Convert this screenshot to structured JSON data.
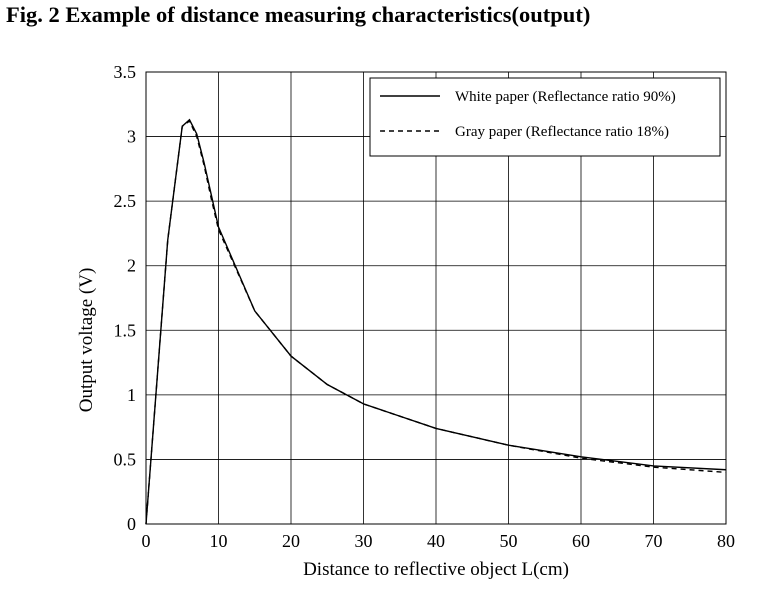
{
  "title": "Fig. 2 Example of distance measuring characteristics(output)",
  "chart_data": {
    "type": "line",
    "xlabel": "Distance to reflective object L(cm)",
    "ylabel": "Output voltage (V)",
    "xlim": [
      0,
      80
    ],
    "ylim": [
      0,
      3.5
    ],
    "xticks": [
      0,
      10,
      20,
      30,
      40,
      50,
      60,
      70,
      80
    ],
    "yticks": [
      0,
      0.5,
      1,
      1.5,
      2,
      2.5,
      3,
      3.5
    ],
    "xtick_labels": [
      "0",
      "10",
      "20",
      "30",
      "40",
      "50",
      "60",
      "70",
      "80"
    ],
    "ytick_labels": [
      "0",
      "0.5",
      "1",
      "1.5",
      "2",
      "2.5",
      "3",
      "3.5"
    ],
    "grid": true,
    "legend_position": "top-right",
    "series": [
      {
        "name": "White paper (Reflectance ratio 90%)",
        "style": "solid",
        "color": "#000000",
        "x": [
          0,
          3,
          5,
          6,
          7,
          8,
          9,
          10,
          15,
          20,
          25,
          30,
          40,
          50,
          60,
          70,
          80
        ],
        "y": [
          0,
          2.2,
          3.08,
          3.13,
          3.02,
          2.8,
          2.55,
          2.3,
          1.65,
          1.3,
          1.08,
          0.93,
          0.74,
          0.61,
          0.52,
          0.45,
          0.42
        ]
      },
      {
        "name": "Gray paper (Reflectance ratio 18%)",
        "style": "dashed",
        "color": "#000000",
        "x": [
          0,
          3,
          5,
          6,
          7,
          8,
          9,
          10,
          15,
          20,
          25,
          30,
          40,
          50,
          60,
          70,
          80
        ],
        "y": [
          0,
          2.2,
          3.08,
          3.12,
          3.0,
          2.78,
          2.52,
          2.28,
          1.65,
          1.3,
          1.08,
          0.93,
          0.74,
          0.61,
          0.51,
          0.44,
          0.4
        ]
      }
    ]
  }
}
